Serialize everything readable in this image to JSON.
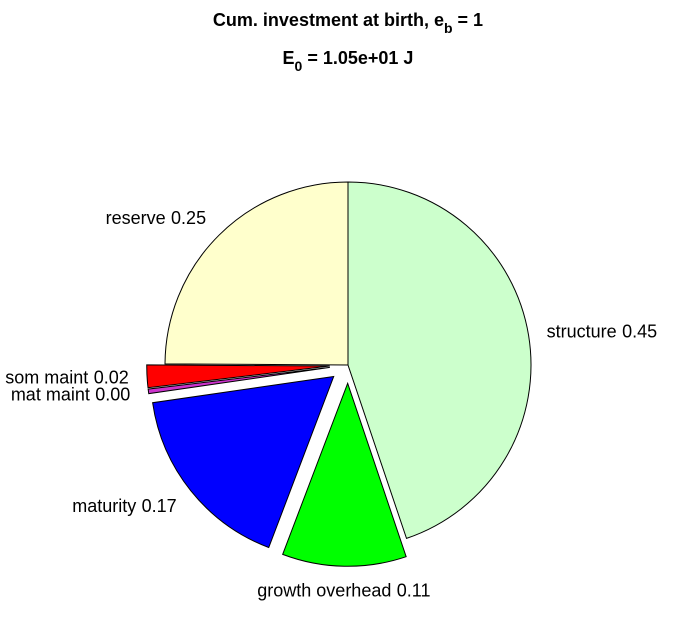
{
  "chart_data": {
    "type": "pie",
    "title": [
      "Cum. investment at birth, e",
      "b",
      " = 1"
    ],
    "subtitle": [
      "E",
      "0",
      " = 1.05e+01 J"
    ],
    "categories": [
      "structure",
      "growth overhead",
      "maturity",
      "mat maint",
      "som maint",
      "reserve"
    ],
    "values": [
      0.45,
      0.11,
      0.17,
      0.004,
      0.02,
      0.25
    ],
    "value_labels": [
      "0.45",
      "0.11",
      "0.17",
      "0.00",
      "0.02",
      "0.25"
    ],
    "colors": [
      "#ccffcc",
      "#00ff00",
      "#0000ff",
      "#cc33cc",
      "#ff0000",
      "#ffffcc"
    ],
    "explode": [
      0,
      1,
      1,
      1,
      1,
      0
    ]
  }
}
